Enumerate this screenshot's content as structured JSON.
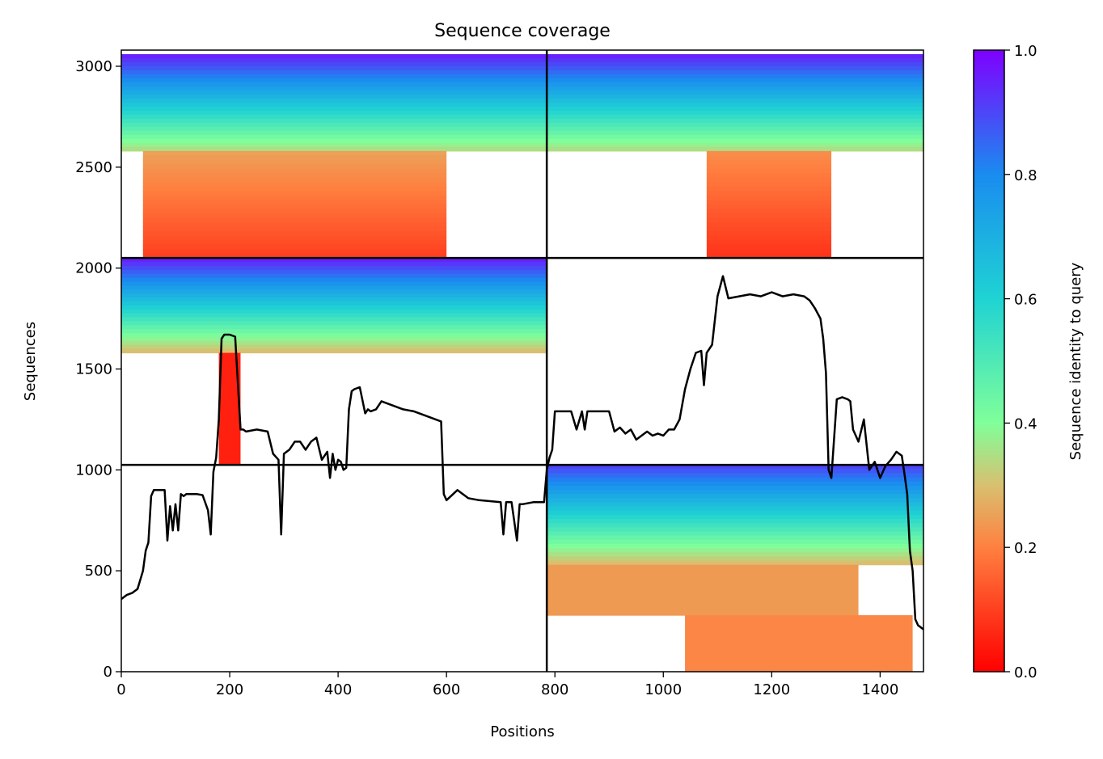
{
  "chart_data": {
    "type": "heatmap",
    "title": "Sequence coverage",
    "xlabel": "Positions",
    "ylabel": "Sequences",
    "xlim": [
      0,
      1480
    ],
    "ylim": [
      0,
      3080
    ],
    "x_ticks": [
      0,
      200,
      400,
      600,
      800,
      1000,
      1200,
      1400
    ],
    "y_ticks": [
      0,
      500,
      1000,
      1500,
      2000,
      2500,
      3000
    ],
    "colorbar": {
      "label": "Sequence identity to query",
      "range": [
        0.0,
        1.0
      ],
      "ticks": [
        "0.0",
        "0.2",
        "0.4",
        "0.6",
        "0.8",
        "1.0"
      ],
      "colormap": "rainbow_r"
    },
    "divider_lines": {
      "x": 785,
      "y": [
        1025,
        2050
      ]
    },
    "blocks": [
      {
        "x": [
          0,
          785
        ],
        "y": [
          2580,
          3060
        ],
        "identity": [
          0.35,
          0.95
        ],
        "gradient": true
      },
      {
        "x": [
          40,
          600
        ],
        "y": [
          2050,
          2580
        ],
        "identity": [
          0.1,
          0.25
        ],
        "gradient": true
      },
      {
        "x": [
          785,
          1480
        ],
        "y": [
          2580,
          3060
        ],
        "identity": [
          0.35,
          0.95
        ],
        "gradient": true
      },
      {
        "x": [
          1080,
          1310
        ],
        "y": [
          2050,
          2580
        ],
        "identity": [
          0.08,
          0.22
        ],
        "gradient": true
      },
      {
        "x": [
          0,
          785
        ],
        "y": [
          1580,
          2050
        ],
        "identity": [
          0.3,
          0.95
        ],
        "gradient": true
      },
      {
        "x": [
          180,
          220
        ],
        "y": [
          1025,
          1580
        ],
        "identity": [
          0.02,
          0.05
        ],
        "gradient": false
      },
      {
        "x": [
          785,
          1480
        ],
        "y": [
          530,
          1025
        ],
        "identity": [
          0.3,
          0.9
        ],
        "gradient": true
      },
      {
        "x": [
          785,
          1360
        ],
        "y": [
          280,
          530
        ],
        "identity": [
          0.22,
          0.24
        ],
        "gradient": false
      },
      {
        "x": [
          1040,
          1460
        ],
        "y": [
          0,
          280
        ],
        "identity": [
          0.18,
          0.21
        ],
        "gradient": false
      }
    ],
    "coverage_line": {
      "x": [
        0,
        10,
        20,
        30,
        40,
        45,
        50,
        55,
        60,
        70,
        80,
        85,
        90,
        95,
        100,
        105,
        110,
        115,
        120,
        130,
        140,
        150,
        160,
        165,
        170,
        175,
        180,
        185,
        190,
        195,
        200,
        210,
        220,
        225,
        230,
        250,
        270,
        280,
        290,
        295,
        300,
        310,
        320,
        330,
        340,
        350,
        360,
        370,
        380,
        385,
        390,
        395,
        400,
        405,
        410,
        415,
        420,
        425,
        430,
        440,
        450,
        455,
        460,
        470,
        480,
        500,
        520,
        540,
        560,
        580,
        590,
        595,
        600,
        620,
        640,
        660,
        700,
        705,
        710,
        720,
        730,
        735,
        740,
        760,
        780,
        785,
        790,
        795,
        800,
        820,
        830,
        840,
        850,
        855,
        860,
        880,
        900,
        910,
        920,
        930,
        940,
        950,
        960,
        970,
        980,
        990,
        1000,
        1010,
        1020,
        1030,
        1040,
        1050,
        1060,
        1070,
        1075,
        1080,
        1090,
        1100,
        1110,
        1120,
        1140,
        1160,
        1180,
        1200,
        1220,
        1240,
        1260,
        1270,
        1280,
        1290,
        1295,
        1300,
        1305,
        1310,
        1320,
        1330,
        1340,
        1345,
        1350,
        1360,
        1370,
        1380,
        1390,
        1400,
        1410,
        1420,
        1430,
        1440,
        1445,
        1450,
        1455,
        1460,
        1465,
        1470,
        1480
      ],
      "y": [
        360,
        380,
        390,
        410,
        500,
        600,
        640,
        870,
        900,
        900,
        900,
        650,
        820,
        700,
        830,
        700,
        880,
        870,
        880,
        880,
        880,
        875,
        800,
        680,
        990,
        1060,
        1250,
        1650,
        1670,
        1670,
        1670,
        1660,
        1200,
        1200,
        1190,
        1200,
        1190,
        1080,
        1050,
        680,
        1080,
        1100,
        1140,
        1140,
        1100,
        1140,
        1160,
        1050,
        1090,
        960,
        1080,
        1000,
        1050,
        1040,
        1000,
        1010,
        1300,
        1390,
        1400,
        1410,
        1280,
        1300,
        1290,
        1300,
        1340,
        1320,
        1300,
        1290,
        1270,
        1250,
        1240,
        880,
        850,
        900,
        860,
        850,
        840,
        680,
        840,
        840,
        650,
        830,
        830,
        840,
        840,
        1000,
        1060,
        1100,
        1290,
        1290,
        1290,
        1200,
        1290,
        1200,
        1290,
        1290,
        1290,
        1190,
        1210,
        1180,
        1200,
        1150,
        1170,
        1190,
        1170,
        1180,
        1170,
        1200,
        1200,
        1250,
        1400,
        1500,
        1580,
        1590,
        1420,
        1580,
        1620,
        1860,
        1960,
        1850,
        1860,
        1870,
        1860,
        1880,
        1860,
        1870,
        1860,
        1840,
        1800,
        1750,
        1650,
        1480,
        1000,
        960,
        1350,
        1360,
        1350,
        1340,
        1200,
        1140,
        1250,
        1000,
        1040,
        960,
        1020,
        1050,
        1090,
        1070,
        980,
        880,
        600,
        500,
        260,
        230,
        210
      ]
    }
  }
}
